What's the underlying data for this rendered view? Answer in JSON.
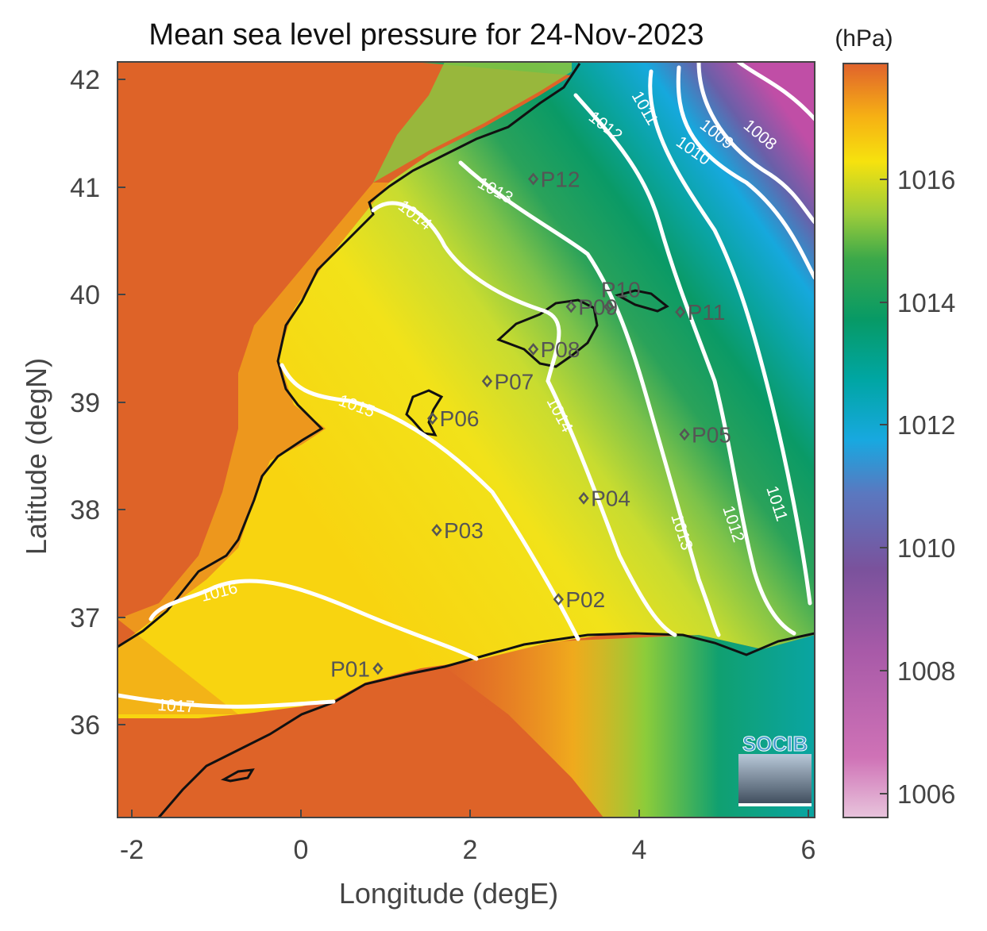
{
  "chart_data": {
    "type": "heatmap",
    "title": "Mean sea level pressure for 24-Nov-2023",
    "xlabel": "Longitude (degE)",
    "ylabel": "Latitude (degN)",
    "xlim": [
      -2.25,
      6.05
    ],
    "ylim": [
      35.1,
      42.2
    ],
    "x_ticks": [
      "-2",
      "0",
      "2",
      "4",
      "6"
    ],
    "y_ticks": [
      "36",
      "37",
      "38",
      "39",
      "40",
      "41",
      "42"
    ],
    "grid": false,
    "colorbar": {
      "unit": "(hPa)",
      "range": [
        1005.6,
        1017.6
      ],
      "ticks": [
        "1006",
        "1008",
        "1010",
        "1012",
        "1014",
        "1016"
      ],
      "colors": [
        "#e8bcd8",
        "#c058a8",
        "#7a4f9e",
        "#1ea3dc",
        "#00a08a",
        "#1f9a50",
        "#8cc63f",
        "#f7e00e",
        "#f5a118",
        "#e0662a"
      ]
    },
    "isobars": [
      {
        "label": "1008",
        "value": 1008
      },
      {
        "label": "1009",
        "value": 1009
      },
      {
        "label": "1010",
        "value": 1010
      },
      {
        "label": "1011",
        "value": 1011
      },
      {
        "label": "1012",
        "value": 1012
      },
      {
        "label": "1013",
        "value": 1013
      },
      {
        "label": "1014",
        "value": 1014
      },
      {
        "label": "1015",
        "value": 1015
      },
      {
        "label": "1016",
        "value": 1016
      },
      {
        "label": "1017",
        "value": 1017
      }
    ],
    "stations": [
      {
        "name": "P01",
        "lon": 0.85,
        "lat": 36.5
      },
      {
        "name": "P02",
        "lon": 3.0,
        "lat": 37.15
      },
      {
        "name": "P03",
        "lon": 1.55,
        "lat": 37.8
      },
      {
        "name": "P04",
        "lon": 3.3,
        "lat": 38.1
      },
      {
        "name": "P05",
        "lon": 4.5,
        "lat": 38.7
      },
      {
        "name": "P06",
        "lon": 1.5,
        "lat": 38.85
      },
      {
        "name": "P07",
        "lon": 2.15,
        "lat": 39.2
      },
      {
        "name": "P08",
        "lon": 2.7,
        "lat": 39.5
      },
      {
        "name": "P09",
        "lon": 3.15,
        "lat": 39.9
      },
      {
        "name": "P10",
        "lon": 3.6,
        "lat": 39.9
      },
      {
        "name": "P11",
        "lon": 4.45,
        "lat": 39.85
      },
      {
        "name": "P12",
        "lon": 2.7,
        "lat": 41.1
      }
    ]
  },
  "logo": {
    "text": "SOCIB",
    "color": "#4a9fd0"
  }
}
